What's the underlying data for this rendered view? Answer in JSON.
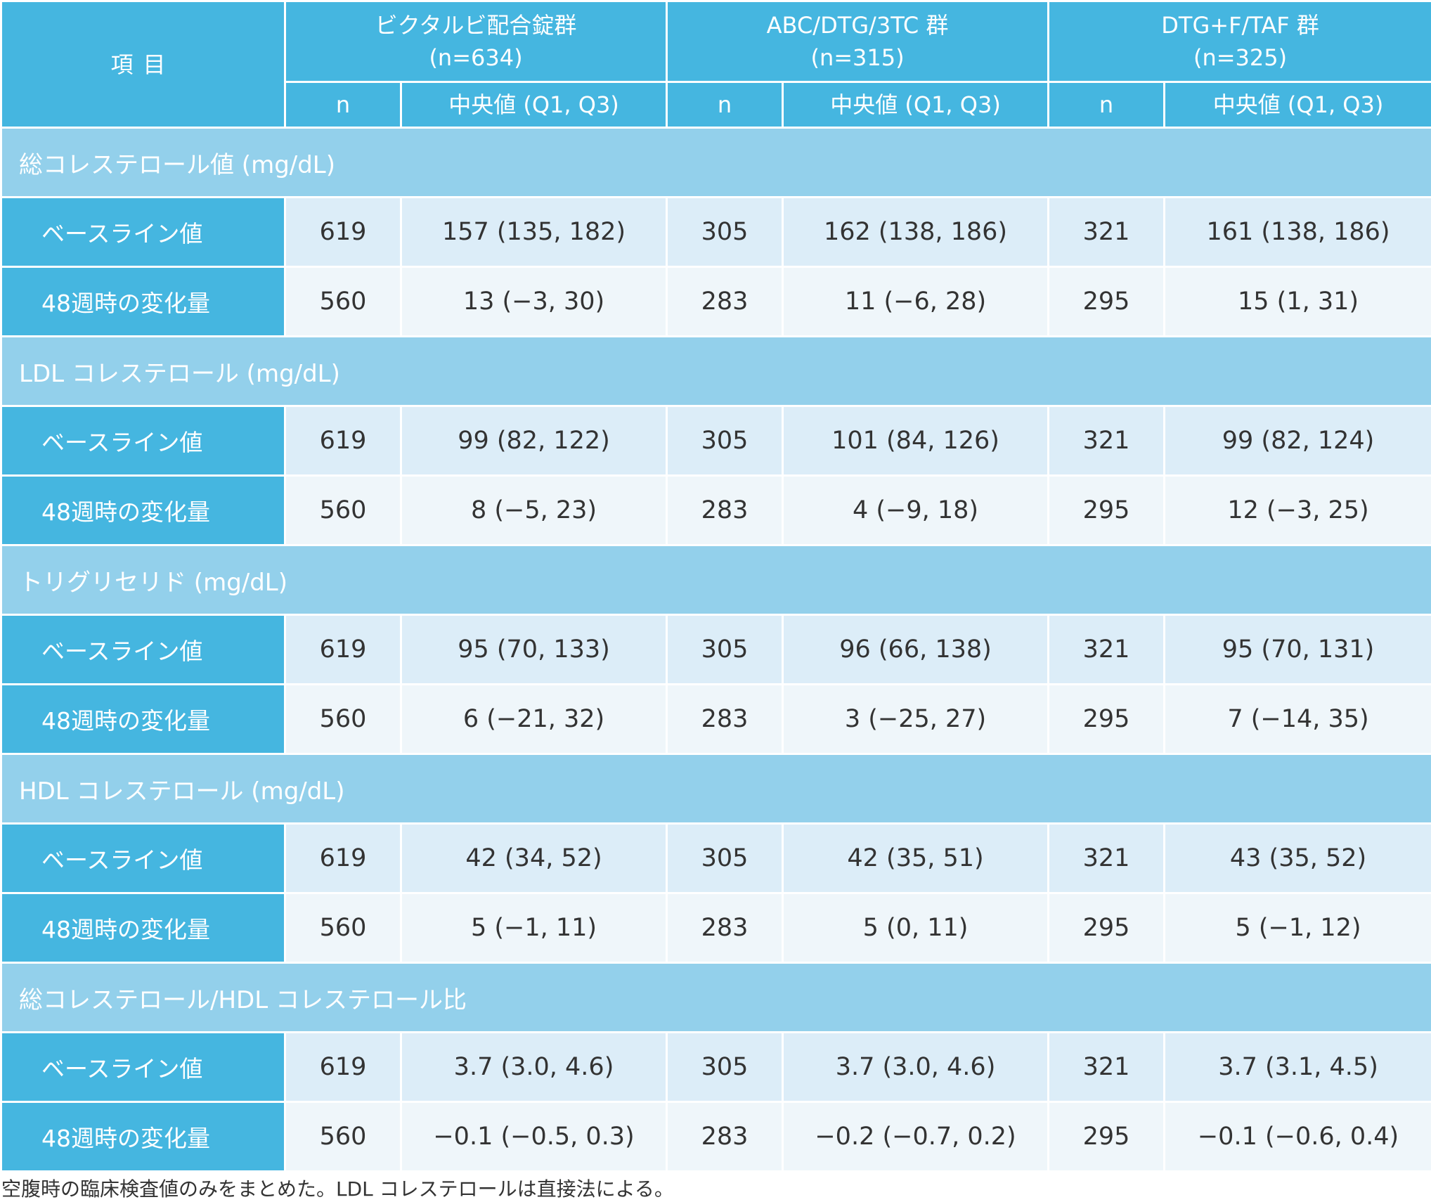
{
  "header": {
    "item_label": "項目",
    "groups": [
      {
        "name": "ビクタルビ配合錠群",
        "n_label": "(n=634)"
      },
      {
        "name": "ABC/DTG/3TC 群",
        "n_label": "(n=315)"
      },
      {
        "name": "DTG+F/TAF 群",
        "n_label": "(n=325)"
      }
    ],
    "sub": {
      "n": "n",
      "median": "中央値 (Q1, Q3)"
    }
  },
  "sections": [
    {
      "title": "総コレステロール値 (mg/dL)",
      "rows": [
        {
          "label": "ベースライン値",
          "cells": [
            "619",
            "157 (135, 182)",
            "305",
            "162 (138, 186)",
            "321",
            "161 (138, 186)"
          ]
        },
        {
          "label": "48週時の変化量",
          "cells": [
            "560",
            "13 (−3, 30)",
            "283",
            "11 (−6, 28)",
            "295",
            "15 (1, 31)"
          ]
        }
      ]
    },
    {
      "title": "LDL コレステロール (mg/dL)",
      "rows": [
        {
          "label": "ベースライン値",
          "cells": [
            "619",
            "99 (82, 122)",
            "305",
            "101 (84, 126)",
            "321",
            "99 (82, 124)"
          ]
        },
        {
          "label": "48週時の変化量",
          "cells": [
            "560",
            "8 (−5, 23)",
            "283",
            "4 (−9, 18)",
            "295",
            "12 (−3, 25)"
          ]
        }
      ]
    },
    {
      "title": "トリグリセリド (mg/dL)",
      "rows": [
        {
          "label": "ベースライン値",
          "cells": [
            "619",
            "95 (70, 133)",
            "305",
            "96 (66, 138)",
            "321",
            "95 (70, 131)"
          ]
        },
        {
          "label": "48週時の変化量",
          "cells": [
            "560",
            "6 (−21, 32)",
            "283",
            "3 (−25, 27)",
            "295",
            "7 (−14, 35)"
          ]
        }
      ]
    },
    {
      "title": "HDL コレステロール (mg/dL)",
      "rows": [
        {
          "label": "ベースライン値",
          "cells": [
            "619",
            "42 (34, 52)",
            "305",
            "42 (35, 51)",
            "321",
            "43 (35, 52)"
          ]
        },
        {
          "label": "48週時の変化量",
          "cells": [
            "560",
            "5 (−1, 11)",
            "283",
            "5 (0, 11)",
            "295",
            "5 (−1, 12)"
          ]
        }
      ]
    },
    {
      "title": "総コレステロール/HDL コレステロール比",
      "rows": [
        {
          "label": "ベースライン値",
          "cells": [
            "619",
            "3.7 (3.0, 4.6)",
            "305",
            "3.7 (3.0, 4.6)",
            "321",
            "3.7 (3.1, 4.5)"
          ]
        },
        {
          "label": "48週時の変化量",
          "cells": [
            "560",
            "−0.1 (−0.5, 0.3)",
            "283",
            "−0.2 (−0.7, 0.2)",
            "295",
            "−0.1 (−0.6, 0.4)"
          ]
        }
      ]
    }
  ],
  "footnote": "空腹時の臨床検査値のみをまとめた。LDL コレステロールは直接法による。",
  "colors": {
    "header_bg": "#45b6e0",
    "section_bg": "#93d0eb",
    "baseline_bg": "#dcedf8",
    "change_bg": "#eff6fa"
  }
}
